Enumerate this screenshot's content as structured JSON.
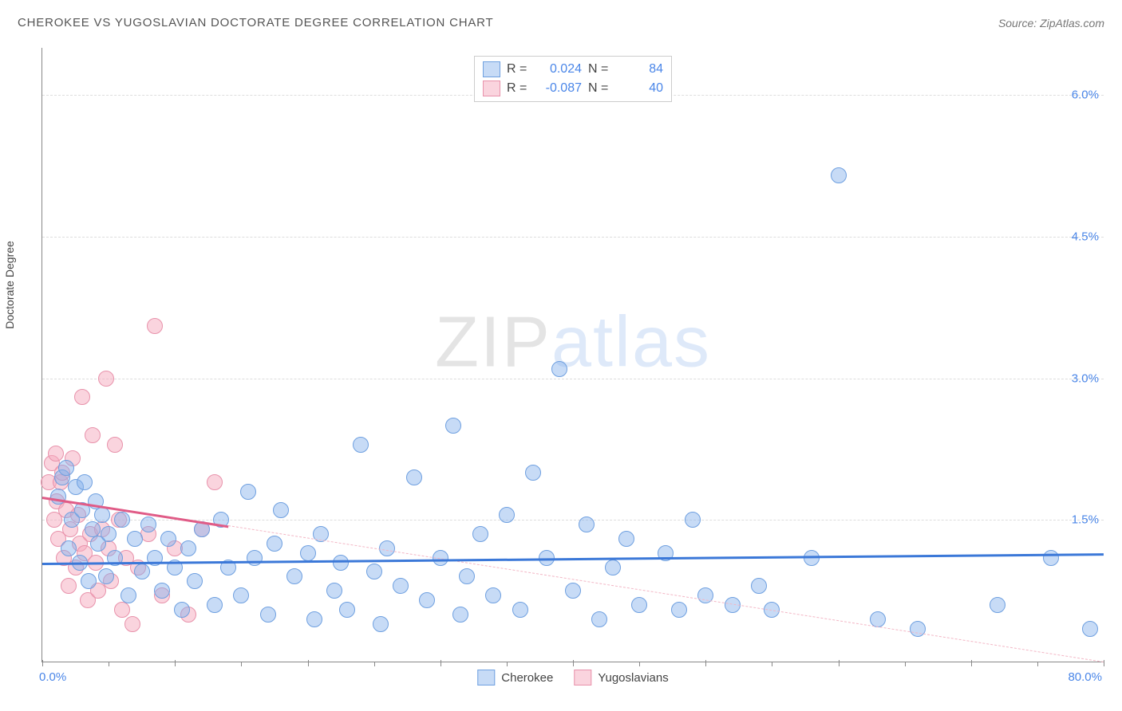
{
  "header": {
    "title": "CHEROKEE VS YUGOSLAVIAN DOCTORATE DEGREE CORRELATION CHART",
    "source_prefix": "Source: ",
    "source_name": "ZipAtlas.com"
  },
  "watermark": {
    "zip": "ZIP",
    "atlas": "atlas"
  },
  "chart": {
    "type": "scatter",
    "ylabel": "Doctorate Degree",
    "xlim": [
      0,
      80
    ],
    "ylim": [
      0,
      6.5
    ],
    "yticks": [
      {
        "v": 1.5,
        "label": "1.5%"
      },
      {
        "v": 3.0,
        "label": "3.0%"
      },
      {
        "v": 4.5,
        "label": "4.5%"
      },
      {
        "v": 6.0,
        "label": "6.0%"
      }
    ],
    "xticks_major": [
      0,
      10,
      20,
      30,
      40,
      50,
      60,
      70,
      80
    ],
    "xticks_minor_step": 5,
    "xaxis_left_label": "0.0%",
    "xaxis_right_label": "80.0%",
    "marker_radius": 9,
    "background_color": "#ffffff",
    "grid_color": "#dddddd",
    "axis_color": "#888888",
    "tick_label_color": "#4a86e8"
  },
  "series": {
    "cherokee": {
      "label": "Cherokee",
      "fill": "rgba(130,175,235,0.45)",
      "stroke": "#6fa0e0",
      "trend_color": "#3b78d8",
      "trend_dash_color": "#b6c9ea",
      "solid_end_x": 80,
      "trend": {
        "x1": 0,
        "y1": 1.05,
        "x2": 80,
        "y2": 1.15
      },
      "R": "0.024",
      "N": "84",
      "points": [
        [
          1.2,
          1.75
        ],
        [
          1.5,
          1.95
        ],
        [
          1.8,
          2.05
        ],
        [
          2.0,
          1.2
        ],
        [
          2.2,
          1.5
        ],
        [
          2.5,
          1.85
        ],
        [
          2.8,
          1.05
        ],
        [
          3.0,
          1.6
        ],
        [
          3.2,
          1.9
        ],
        [
          3.5,
          0.85
        ],
        [
          3.8,
          1.4
        ],
        [
          4.0,
          1.7
        ],
        [
          4.2,
          1.25
        ],
        [
          4.5,
          1.55
        ],
        [
          4.8,
          0.9
        ],
        [
          5.0,
          1.35
        ],
        [
          5.5,
          1.1
        ],
        [
          6.0,
          1.5
        ],
        [
          6.5,
          0.7
        ],
        [
          7.0,
          1.3
        ],
        [
          7.5,
          0.95
        ],
        [
          8.0,
          1.45
        ],
        [
          8.5,
          1.1
        ],
        [
          9.0,
          0.75
        ],
        [
          9.5,
          1.3
        ],
        [
          10.0,
          1.0
        ],
        [
          10.5,
          0.55
        ],
        [
          11.0,
          1.2
        ],
        [
          11.5,
          0.85
        ],
        [
          12.0,
          1.4
        ],
        [
          13.0,
          0.6
        ],
        [
          13.5,
          1.5
        ],
        [
          14.0,
          1.0
        ],
        [
          15.0,
          0.7
        ],
        [
          15.5,
          1.8
        ],
        [
          16.0,
          1.1
        ],
        [
          17.0,
          0.5
        ],
        [
          17.5,
          1.25
        ],
        [
          18.0,
          1.6
        ],
        [
          19.0,
          0.9
        ],
        [
          20.0,
          1.15
        ],
        [
          20.5,
          0.45
        ],
        [
          21.0,
          1.35
        ],
        [
          22.0,
          0.75
        ],
        [
          22.5,
          1.05
        ],
        [
          23.0,
          0.55
        ],
        [
          24.0,
          2.3
        ],
        [
          25.0,
          0.95
        ],
        [
          25.5,
          0.4
        ],
        [
          26.0,
          1.2
        ],
        [
          27.0,
          0.8
        ],
        [
          28.0,
          1.95
        ],
        [
          29.0,
          0.65
        ],
        [
          30.0,
          1.1
        ],
        [
          31.0,
          2.5
        ],
        [
          31.5,
          0.5
        ],
        [
          32.0,
          0.9
        ],
        [
          33.0,
          1.35
        ],
        [
          34.0,
          0.7
        ],
        [
          35.0,
          1.55
        ],
        [
          36.0,
          0.55
        ],
        [
          37.0,
          2.0
        ],
        [
          38.0,
          1.1
        ],
        [
          39.0,
          3.1
        ],
        [
          40.0,
          0.75
        ],
        [
          41.0,
          1.45
        ],
        [
          42.0,
          0.45
        ],
        [
          43.0,
          1.0
        ],
        [
          44.0,
          1.3
        ],
        [
          45.0,
          0.6
        ],
        [
          47.0,
          1.15
        ],
        [
          48.0,
          0.55
        ],
        [
          49.0,
          1.5
        ],
        [
          50.0,
          0.7
        ],
        [
          52.0,
          0.6
        ],
        [
          54.0,
          0.8
        ],
        [
          55.0,
          0.55
        ],
        [
          58.0,
          1.1
        ],
        [
          60.0,
          5.15
        ],
        [
          63.0,
          0.45
        ],
        [
          66.0,
          0.35
        ],
        [
          72.0,
          0.6
        ],
        [
          76.0,
          1.1
        ],
        [
          79.0,
          0.35
        ]
      ]
    },
    "yugoslavians": {
      "label": "Yugoslavians",
      "fill": "rgba(245,170,190,0.5)",
      "stroke": "#e892ab",
      "trend_color": "#e05c87",
      "trend_dash_color": "#f3b6c5",
      "solid_end_x": 14,
      "trend": {
        "x1": 0,
        "y1": 1.75,
        "x2": 80,
        "y2": 0.0
      },
      "R": "-0.087",
      "N": "40",
      "points": [
        [
          0.5,
          1.9
        ],
        [
          0.7,
          2.1
        ],
        [
          0.9,
          1.5
        ],
        [
          1.0,
          2.2
        ],
        [
          1.1,
          1.7
        ],
        [
          1.2,
          1.3
        ],
        [
          1.4,
          1.9
        ],
        [
          1.5,
          2.0
        ],
        [
          1.6,
          1.1
        ],
        [
          1.8,
          1.6
        ],
        [
          2.0,
          0.8
        ],
        [
          2.1,
          1.4
        ],
        [
          2.3,
          2.15
        ],
        [
          2.5,
          1.0
        ],
        [
          2.7,
          1.55
        ],
        [
          2.8,
          1.25
        ],
        [
          3.0,
          2.8
        ],
        [
          3.2,
          1.15
        ],
        [
          3.4,
          0.65
        ],
        [
          3.6,
          1.35
        ],
        [
          3.8,
          2.4
        ],
        [
          4.0,
          1.05
        ],
        [
          4.2,
          0.75
        ],
        [
          4.5,
          1.4
        ],
        [
          4.8,
          3.0
        ],
        [
          5.0,
          1.2
        ],
        [
          5.2,
          0.85
        ],
        [
          5.5,
          2.3
        ],
        [
          5.8,
          1.5
        ],
        [
          6.0,
          0.55
        ],
        [
          6.3,
          1.1
        ],
        [
          6.8,
          0.4
        ],
        [
          7.2,
          1.0
        ],
        [
          8.0,
          1.35
        ],
        [
          8.5,
          3.55
        ],
        [
          9.0,
          0.7
        ],
        [
          10.0,
          1.2
        ],
        [
          11.0,
          0.5
        ],
        [
          12.0,
          1.4
        ],
        [
          13.0,
          1.9
        ]
      ]
    }
  },
  "legend_top": {
    "r_label": "R =",
    "n_label": "N ="
  }
}
